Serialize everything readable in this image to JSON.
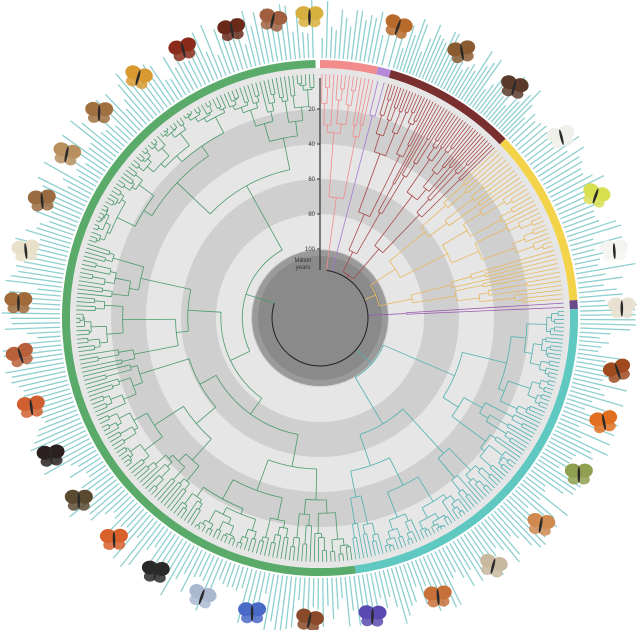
{
  "axis": {
    "ticks": [
      20,
      40,
      60,
      80,
      100
    ],
    "label_line1": "Million",
    "label_line2": "years",
    "root_age": 118
  },
  "colors": {
    "tip_labels": "#8fcfcf",
    "band_light": "#e6e6e6",
    "band_dark": "#cfcfcf",
    "center": "#8a8a8a"
  },
  "clades": [
    {
      "color": "#f08a8a",
      "ring": "#f28b8b",
      "start_deg": 0,
      "end_deg": 13,
      "tips": 14,
      "crown_age": 70
    },
    {
      "color": "#a67bd0",
      "ring": "#b48ad8",
      "start_deg": 13,
      "end_deg": 16,
      "tips": 2,
      "crown_age": 20
    },
    {
      "color": "#a84a4a",
      "ring": "#7a2f2f",
      "start_deg": 16,
      "end_deg": 46,
      "tips": 40,
      "crown_age": 110
    },
    {
      "color": "#e8b860",
      "ring": "#f2d34a",
      "start_deg": 46,
      "end_deg": 86,
      "tips": 38,
      "crown_age": 105
    },
    {
      "color": "#9a5ab0",
      "ring": "#6a4a8a",
      "start_deg": 86,
      "end_deg": 88,
      "tips": 2,
      "crown_age": 90
    },
    {
      "color": "#4fb0b0",
      "ring": "#5fc8c0",
      "start_deg": 88,
      "end_deg": 172,
      "tips": 90,
      "crown_age": 100
    },
    {
      "color": "#4a9a6a",
      "ring": "#5aaa6a",
      "start_deg": 172,
      "end_deg": 359,
      "tips": 190,
      "crown_age": 95
    }
  ],
  "butterflies": [
    {
      "angle": 358,
      "color": "#d8b040"
    },
    {
      "angle": 15,
      "color": "#b86a2a"
    },
    {
      "angle": 28,
      "color": "#8a5a30"
    },
    {
      "angle": 40,
      "color": "#5a3a2a"
    },
    {
      "angle": 53,
      "color": "#f0f0ea"
    },
    {
      "angle": 66,
      "color": "#d8e050"
    },
    {
      "angle": 77,
      "color": "#f4f4f0"
    },
    {
      "angle": 88,
      "color": "#e8e0d0"
    },
    {
      "angle": 100,
      "color": "#a04a20"
    },
    {
      "angle": 110,
      "color": "#e07020"
    },
    {
      "angle": 121,
      "color": "#90a050"
    },
    {
      "angle": 133,
      "color": "#d08a50"
    },
    {
      "angle": 145,
      "color": "#c8b8a0"
    },
    {
      "angle": 157,
      "color": "#c8703a"
    },
    {
      "angle": 170,
      "color": "#5a4ab0"
    },
    {
      "angle": 182,
      "color": "#8a4a2a"
    },
    {
      "angle": 193,
      "color": "#4a6ac8"
    },
    {
      "angle": 203,
      "color": "#aab8d0"
    },
    {
      "angle": 213,
      "color": "#2a2a2a"
    },
    {
      "angle": 223,
      "color": "#d8602a"
    },
    {
      "angle": 233,
      "color": "#5a4a30"
    },
    {
      "angle": 243,
      "color": "#2a2020"
    },
    {
      "angle": 253,
      "color": "#d06030"
    },
    {
      "angle": 263,
      "color": "#b8603a"
    },
    {
      "angle": 273,
      "color": "#a06a3a"
    },
    {
      "angle": 283,
      "color": "#e8e0c8"
    },
    {
      "angle": 293,
      "color": "#9a6a40"
    },
    {
      "angle": 303,
      "color": "#b89060"
    },
    {
      "angle": 313,
      "color": "#a07040"
    },
    {
      "angle": 323,
      "color": "#d89a30"
    },
    {
      "angle": 333,
      "color": "#8a2a1a"
    },
    {
      "angle": 343,
      "color": "#6a2a1a"
    },
    {
      "angle": 351,
      "color": "#a06040"
    }
  ]
}
